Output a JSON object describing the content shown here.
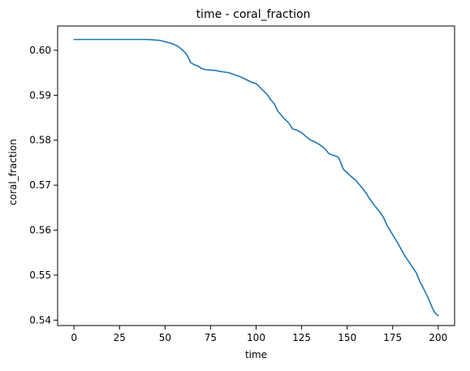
{
  "chart_data": {
    "type": "line",
    "title": "time - coral_fraction",
    "xlabel": "time",
    "ylabel": "coral_fraction",
    "xlim": [
      -9,
      209
    ],
    "ylim": [
      0.5388,
      0.6054
    ],
    "xticks": [
      0,
      25,
      50,
      75,
      100,
      125,
      150,
      175,
      200
    ],
    "yticks": [
      0.54,
      0.55,
      0.56,
      0.57,
      0.58,
      0.59,
      0.6
    ],
    "ytick_labels": [
      "0.54",
      "0.55",
      "0.56",
      "0.57",
      "0.58",
      "0.59",
      "0.60"
    ],
    "grid": false,
    "legend": "none",
    "series": [
      {
        "color": "#1f77b4",
        "x": [
          0,
          5,
          10,
          15,
          20,
          25,
          30,
          35,
          40,
          44,
          47,
          50,
          53,
          56,
          58,
          60,
          62,
          64,
          66,
          68,
          70,
          72,
          75,
          78,
          80,
          82,
          85,
          88,
          90,
          92,
          95,
          98,
          100,
          102,
          104,
          106,
          108,
          110,
          112,
          115,
          118,
          120,
          122,
          125,
          128,
          130,
          132,
          135,
          138,
          140,
          142,
          145,
          146,
          147,
          148,
          150,
          152,
          155,
          158,
          160,
          162,
          165,
          168,
          170,
          172,
          175,
          178,
          180,
          182,
          185,
          188,
          190,
          192,
          195,
          197,
          198,
          199,
          200
        ],
        "y": [
          0.6024,
          0.6024,
          0.6024,
          0.6024,
          0.6024,
          0.6024,
          0.6024,
          0.6024,
          0.6024,
          0.6023,
          0.6022,
          0.6019,
          0.6016,
          0.6011,
          0.6006,
          0.5999,
          0.599,
          0.5973,
          0.5968,
          0.5965,
          0.596,
          0.5957,
          0.5956,
          0.5955,
          0.5953,
          0.5952,
          0.595,
          0.5946,
          0.5943,
          0.594,
          0.5934,
          0.5928,
          0.5926,
          0.5918,
          0.591,
          0.5902,
          0.589,
          0.5881,
          0.5864,
          0.585,
          0.5838,
          0.5825,
          0.5823,
          0.5817,
          0.5806,
          0.58,
          0.5797,
          0.579,
          0.578,
          0.577,
          0.5767,
          0.5763,
          0.5755,
          0.5745,
          0.5735,
          0.5728,
          0.572,
          0.571,
          0.5695,
          0.5685,
          0.5672,
          0.5655,
          0.564,
          0.5628,
          0.561,
          0.559,
          0.557,
          0.5555,
          0.5541,
          0.5523,
          0.5505,
          0.5485,
          0.547,
          0.5445,
          0.5425,
          0.5418,
          0.5413,
          0.541
        ]
      }
    ]
  }
}
